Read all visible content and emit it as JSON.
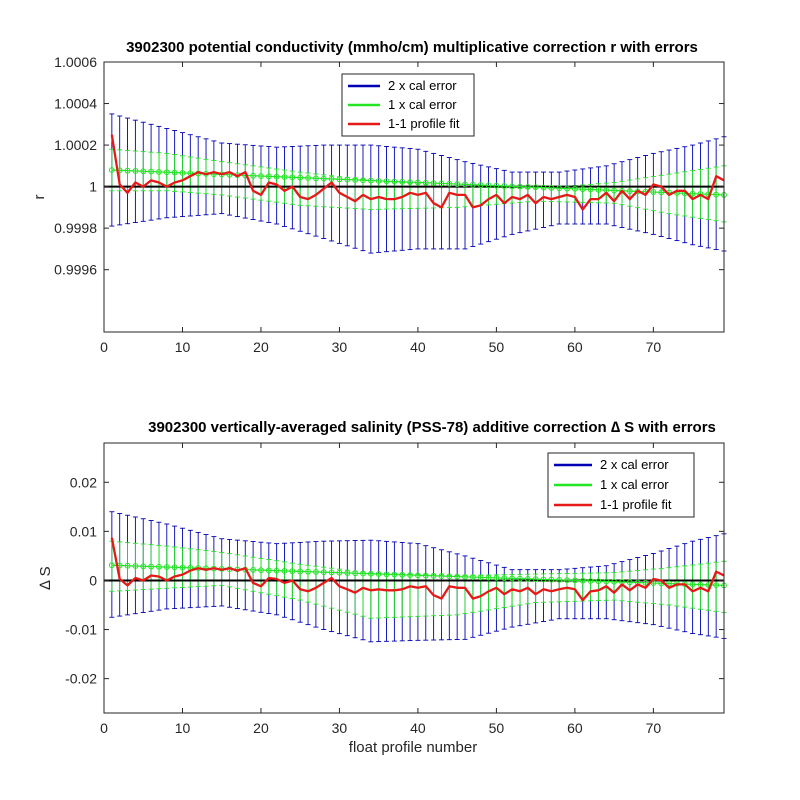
{
  "colors": {
    "two_cal_error": "#0000b4",
    "one_cal_error": "#22e622",
    "profile_fit": "#e61919",
    "reference_line": "#000000",
    "axis": "#262626"
  },
  "chart_data": [
    {
      "type": "line",
      "title": "3902300 potential conductivity (mmho/cm) multiplicative correction r with errors",
      "xlabel": "",
      "ylabel": "r",
      "xlim": [
        0,
        79
      ],
      "ylim": [
        0.9993,
        1.0006
      ],
      "xticks": [
        0,
        10,
        20,
        30,
        40,
        50,
        60,
        70
      ],
      "xtick_labels": [
        "0",
        "10",
        "20",
        "30",
        "40",
        "50",
        "60",
        "70"
      ],
      "yticks": [
        0.9996,
        0.9998,
        1,
        1.0002,
        1.0004,
        1.0006
      ],
      "ytick_labels": [
        "0.9996",
        "0.9998",
        "1",
        "1.0002",
        "1.0004",
        "1.0006"
      ],
      "reference_line": 1,
      "grid": false,
      "legend": [
        "2 x cal error",
        "1 x cal error",
        "1-1 profile fit"
      ],
      "legend_location": "top-center",
      "x": [
        1,
        79
      ],
      "fit_line": [
        1.00008,
        0.99996
      ],
      "one_cal_error": {
        "upper": {
          "x": [
            1,
            8,
            15,
            25,
            34,
            45,
            55,
            65,
            72,
            79
          ],
          "y": [
            1.00018,
            1.00016,
            1.00012,
            1.00007,
            1.00003,
            1.0,
            0.99999,
            1.00002,
            1.00006,
            1.0001
          ]
        },
        "lower": {
          "x": [
            1,
            8,
            15,
            25,
            34,
            45,
            55,
            65,
            72,
            79
          ],
          "y": [
            0.99998,
            0.99998,
            0.99996,
            0.99991,
            0.99989,
            0.9999,
            0.99993,
            0.99992,
            0.99987,
            0.99983
          ]
        }
      },
      "two_cal_error": {
        "upper": {
          "x": [
            1,
            8,
            15,
            22,
            28,
            34,
            40,
            46,
            52,
            58,
            64,
            70,
            75,
            79
          ],
          "y": [
            1.00035,
            1.00028,
            1.00021,
            1.00019,
            1.0002,
            1.0002,
            1.00018,
            1.00012,
            1.00007,
            1.00007,
            1.0001,
            1.00016,
            1.0002,
            1.00024
          ]
        },
        "lower": {
          "x": [
            1,
            8,
            15,
            22,
            28,
            34,
            40,
            46,
            52,
            58,
            64,
            70,
            75,
            79
          ],
          "y": [
            0.99981,
            0.99985,
            0.99987,
            0.99982,
            0.99975,
            0.99968,
            0.9997,
            0.9997,
            0.99977,
            0.99982,
            0.99982,
            0.99977,
            0.99972,
            0.99969
          ]
        }
      },
      "profile_fit": {
        "x": [
          1,
          2,
          3,
          4,
          5,
          6,
          7,
          8,
          9,
          10,
          11,
          12,
          13,
          14,
          15,
          16,
          17,
          18,
          19,
          20,
          21,
          22,
          23,
          24,
          25,
          26,
          27,
          28,
          29,
          30,
          31,
          32,
          33,
          34,
          35,
          36,
          37,
          38,
          39,
          40,
          41,
          42,
          43,
          44,
          45,
          46,
          47,
          48,
          49,
          50,
          51,
          52,
          53,
          54,
          55,
          56,
          57,
          58,
          59,
          60,
          61,
          62,
          63,
          64,
          65,
          66,
          67,
          68,
          69,
          70,
          71,
          72,
          73,
          74,
          75,
          76,
          77,
          78,
          79
        ],
        "y": [
          1.00025,
          1.00001,
          0.99997,
          1.00002,
          1.0,
          1.00003,
          1.00002,
          1.0,
          1.00002,
          1.00003,
          1.00005,
          1.00007,
          1.00006,
          1.00007,
          1.00006,
          1.00007,
          1.00005,
          1.00007,
          0.99998,
          0.99996,
          1.00002,
          1.00001,
          0.99998,
          1.0,
          0.99995,
          0.99994,
          0.99996,
          0.99999,
          1.00002,
          0.99997,
          0.99995,
          0.99993,
          0.99996,
          0.99994,
          0.99995,
          0.99994,
          0.99994,
          0.99995,
          0.99997,
          0.99996,
          0.99997,
          0.99992,
          0.9999,
          0.99997,
          0.99996,
          0.99996,
          0.9999,
          0.99991,
          0.99994,
          0.99996,
          0.99992,
          0.99995,
          0.99994,
          0.99996,
          0.99992,
          0.99995,
          0.99994,
          0.99995,
          0.99996,
          0.99995,
          0.99989,
          0.99994,
          0.99994,
          0.99997,
          0.99993,
          0.99998,
          0.99994,
          0.99998,
          0.99996,
          1.00001,
          1.0,
          0.99996,
          0.99998,
          0.99998,
          0.99994,
          0.99996,
          0.99994,
          1.00005,
          1.00003
        ]
      }
    },
    {
      "type": "line",
      "title": "3902300 vertically-averaged salinity (PSS-78) additive correction ∆ S with errors",
      "xlabel": "float profile number",
      "ylabel": "∆ S",
      "xlim": [
        0,
        79
      ],
      "ylim": [
        -0.027,
        0.028
      ],
      "xticks": [
        0,
        10,
        20,
        30,
        40,
        50,
        60,
        70
      ],
      "xtick_labels": [
        "0",
        "10",
        "20",
        "30",
        "40",
        "50",
        "60",
        "70"
      ],
      "yticks": [
        -0.02,
        -0.01,
        0,
        0.01,
        0.02
      ],
      "ytick_labels": [
        "-0.02",
        "-0.01",
        "0",
        "0.01",
        "0.02"
      ],
      "reference_line": 0,
      "grid": false,
      "legend": [
        "2 x cal error",
        "1 x cal error",
        "1-1 profile fit"
      ],
      "legend_location": "top-right",
      "x": [
        1,
        79
      ],
      "fit_line": [
        0.0031,
        -0.001
      ],
      "one_cal_error": {
        "upper": {
          "x": [
            1,
            8,
            15,
            25,
            34,
            45,
            55,
            65,
            72,
            79
          ],
          "y": [
            0.008,
            0.007,
            0.0057,
            0.0033,
            0.0015,
            0.001,
            0.0013,
            0.0016,
            0.0026,
            0.0039
          ]
        },
        "lower": {
          "x": [
            1,
            8,
            15,
            25,
            34,
            45,
            55,
            65,
            72,
            79
          ],
          "y": [
            -0.0022,
            -0.0016,
            -0.001,
            -0.004,
            -0.0077,
            -0.007,
            -0.0045,
            -0.004,
            -0.005,
            -0.0065
          ]
        }
      },
      "two_cal_error": {
        "upper": {
          "x": [
            1,
            8,
            15,
            22,
            28,
            34,
            40,
            46,
            52,
            58,
            64,
            70,
            75,
            79
          ],
          "y": [
            0.014,
            0.0115,
            0.0085,
            0.0075,
            0.008,
            0.0082,
            0.0075,
            0.005,
            0.0022,
            0.0022,
            0.003,
            0.0055,
            0.008,
            0.0095
          ]
        },
        "lower": {
          "x": [
            1,
            8,
            15,
            22,
            28,
            34,
            40,
            46,
            52,
            58,
            64,
            70,
            75,
            79
          ],
          "y": [
            -0.0075,
            -0.0058,
            -0.0052,
            -0.007,
            -0.01,
            -0.0125,
            -0.0122,
            -0.012,
            -0.0095,
            -0.0078,
            -0.0078,
            -0.009,
            -0.0108,
            -0.0118
          ]
        }
      },
      "profile_fit": {
        "x": [
          1,
          2,
          3,
          4,
          5,
          6,
          7,
          8,
          9,
          10,
          11,
          12,
          13,
          14,
          15,
          16,
          17,
          18,
          19,
          20,
          21,
          22,
          23,
          24,
          25,
          26,
          27,
          28,
          29,
          30,
          31,
          32,
          33,
          34,
          35,
          36,
          37,
          38,
          39,
          40,
          41,
          42,
          43,
          44,
          45,
          46,
          47,
          48,
          49,
          50,
          51,
          52,
          53,
          54,
          55,
          56,
          57,
          58,
          59,
          60,
          61,
          62,
          63,
          64,
          65,
          66,
          67,
          68,
          69,
          70,
          71,
          72,
          73,
          74,
          75,
          76,
          77,
          78,
          79
        ],
        "y": [
          0.0087,
          0.0003,
          -0.001,
          0.0005,
          0.0,
          0.001,
          0.0008,
          0.0,
          0.0008,
          0.0012,
          0.002,
          0.0025,
          0.0022,
          0.0025,
          0.0022,
          0.0025,
          0.002,
          0.0025,
          -0.0005,
          -0.0012,
          0.0005,
          0.0003,
          -0.0005,
          0.0,
          -0.0018,
          -0.0022,
          -0.0015,
          -0.0005,
          0.0005,
          -0.0012,
          -0.0018,
          -0.0025,
          -0.0015,
          -0.002,
          -0.0018,
          -0.002,
          -0.002,
          -0.0018,
          -0.0012,
          -0.0015,
          -0.0012,
          -0.003,
          -0.0037,
          -0.0012,
          -0.0015,
          -0.0015,
          -0.0037,
          -0.0032,
          -0.0022,
          -0.0015,
          -0.0028,
          -0.0018,
          -0.0022,
          -0.0015,
          -0.0028,
          -0.0018,
          -0.0022,
          -0.0018,
          -0.0015,
          -0.0018,
          -0.004,
          -0.0022,
          -0.002,
          -0.0012,
          -0.0025,
          -0.0008,
          -0.002,
          -0.0008,
          -0.0015,
          0.0003,
          0.0,
          -0.0015,
          -0.0008,
          -0.0008,
          -0.0022,
          -0.0015,
          -0.0022,
          0.0018,
          0.001
        ]
      }
    }
  ]
}
